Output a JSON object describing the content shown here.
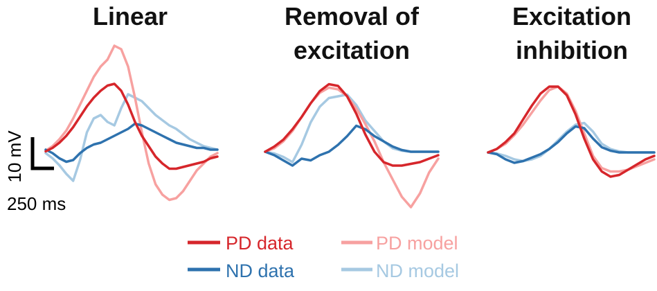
{
  "chart_data": {
    "type": "line",
    "panels": [
      {
        "title_lines": [
          "Linear"
        ],
        "series": [
          {
            "name": "PD data",
            "values": [
              -0.5,
              0.5,
              2,
              4,
              6.5,
              9.5,
              12.5,
              15,
              17,
              18.5,
              19,
              17,
              13,
              8,
              4,
              1,
              -2,
              -4,
              -5.5,
              -5.5,
              -5,
              -4.5,
              -4,
              -3.5,
              -2.5,
              -2
            ]
          },
          {
            "name": "PD model",
            "values": [
              -0.3,
              1,
              3,
              5.5,
              9,
              13,
              17,
              21,
              24,
              26,
              30,
              29,
              24,
              15,
              5,
              -4,
              -10,
              -13,
              -14.5,
              -14,
              -12,
              -9,
              -6,
              -4,
              -2,
              -1
            ]
          },
          {
            "name": "ND data",
            "values": [
              0,
              -1,
              -2.5,
              -3.5,
              -3,
              -1,
              0.5,
              1.5,
              2,
              3,
              4,
              5,
              6,
              7.5,
              7,
              6,
              5,
              4,
              3,
              2,
              1.5,
              1,
              0.5,
              0.5,
              0,
              0
            ]
          },
          {
            "name": "ND model",
            "values": [
              -1,
              -2.5,
              -4.5,
              -7,
              -9,
              -3,
              5,
              9,
              10,
              8,
              7,
              12,
              16,
              15,
              14,
              12,
              10,
              8.5,
              7,
              6,
              4.5,
              3,
              2,
              1,
              0.5,
              0
            ]
          }
        ]
      },
      {
        "title_lines": [
          "Removal of",
          "excitation"
        ],
        "series": [
          {
            "name": "PD data",
            "values": [
              0,
              1.5,
              3.5,
              6.5,
              10,
              14,
              17.5,
              19.5,
              19,
              16,
              11,
              5,
              0,
              -3,
              -4,
              -4,
              -3.5,
              -3,
              -2,
              -1
            ]
          },
          {
            "name": "PD model",
            "values": [
              0,
              1,
              3,
              6,
              10,
              14,
              17,
              18.5,
              18,
              16,
              12.5,
              8,
              3,
              -3,
              -8,
              -13,
              -16,
              -12,
              -6,
              -2
            ]
          },
          {
            "name": "ND data",
            "values": [
              0,
              -1,
              -2.5,
              -4,
              -2,
              -2.5,
              -1,
              0,
              2,
              4.5,
              7.5,
              6.5,
              4.5,
              3,
              1.5,
              0.5,
              0,
              0,
              0,
              0
            ]
          },
          {
            "name": "ND model",
            "values": [
              0,
              -0.5,
              -1.5,
              -3,
              2,
              8.5,
              13,
              15.5,
              16,
              16.5,
              13.5,
              9,
              6,
              3,
              1,
              0.3,
              0,
              0,
              0,
              0
            ]
          }
        ]
      },
      {
        "title_lines": [
          "Excitation",
          "inhibition"
        ],
        "series": [
          {
            "name": "PD data",
            "values": [
              0,
              1,
              3,
              5.5,
              9.5,
              13.5,
              17,
              19,
              19,
              16.5,
              11,
              4,
              -2,
              -5.5,
              -7,
              -6.5,
              -5,
              -3.5,
              -2,
              -1
            ]
          },
          {
            "name": "PD model",
            "values": [
              0,
              1,
              2.5,
              5,
              8,
              11.5,
              15,
              18,
              19,
              17,
              12,
              5.5,
              -1,
              -4.5,
              -5.5,
              -5.5,
              -5,
              -4,
              -3,
              -2
            ]
          },
          {
            "name": "ND data",
            "values": [
              0,
              -0.5,
              -2,
              -3,
              -2.5,
              -1.5,
              -0.5,
              1,
              3,
              5.5,
              7.5,
              7,
              4,
              1.5,
              0.5,
              0,
              0,
              0,
              0,
              0
            ]
          },
          {
            "name": "ND model",
            "values": [
              0,
              -0.3,
              -1,
              -2,
              -2.5,
              -2,
              -1,
              1,
              3.5,
              6,
              8,
              8.5,
              6,
              2.5,
              1,
              0.3,
              0,
              0,
              0,
              0
            ]
          }
        ]
      }
    ],
    "colors": {
      "PD data": "#d6262b",
      "PD model": "#f7a1a0",
      "ND data": "#2e72ae",
      "ND model": "#a6c9e2"
    },
    "scale_bar": {
      "voltage_label": "10 mV",
      "time_label": "250 ms"
    },
    "legend": [
      {
        "name": "PD data",
        "label": "PD data"
      },
      {
        "name": "PD model",
        "label": "PD model"
      },
      {
        "name": "ND data",
        "label": "ND data"
      },
      {
        "name": "ND model",
        "label": "ND model"
      }
    ]
  }
}
